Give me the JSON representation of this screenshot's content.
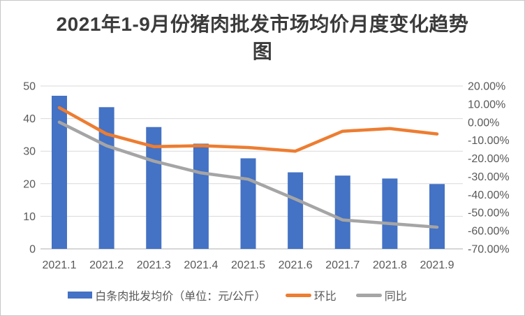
{
  "chart_data": {
    "type": "combo-bar-line",
    "title": "2021年1-9月份猪肉批发市场均价月度变化趋势图",
    "categories": [
      "2021.1",
      "2021.2",
      "2021.3",
      "2021.4",
      "2021.5",
      "2021.6",
      "2021.7",
      "2021.8",
      "2021.9"
    ],
    "series": [
      {
        "name": "白条肉批发均价（单位：元/公斤）",
        "type": "bar",
        "axis": "left",
        "color": "#4472C4",
        "values": [
          47.0,
          43.5,
          37.4,
          32.3,
          27.8,
          23.5,
          22.5,
          21.6,
          19.9
        ]
      },
      {
        "name": "环比",
        "type": "line",
        "axis": "right",
        "color": "#ED7D31",
        "values": [
          8.0,
          -6.5,
          -13.5,
          -13.0,
          -14.0,
          -16.0,
          -5.0,
          -3.5,
          -6.5
        ]
      },
      {
        "name": "同比",
        "type": "line",
        "axis": "right",
        "color": "#A5A5A5",
        "values": [
          0.0,
          -13.0,
          -21.5,
          -28.0,
          -31.5,
          -42.5,
          -54.0,
          -56.0,
          -58.0
        ]
      }
    ],
    "left_axis": {
      "min": 0,
      "max": 50,
      "step": 10,
      "ticks": [
        "0",
        "10",
        "20",
        "30",
        "40",
        "50"
      ]
    },
    "right_axis": {
      "min": -70,
      "max": 20,
      "step": 10,
      "ticks": [
        "20.00%",
        "10.00%",
        "0.00%",
        "-10.00%",
        "-20.00%",
        "-30.00%",
        "-40.00%",
        "-50.00%",
        "-60.00%",
        "-70.00%"
      ]
    },
    "grid": true,
    "legend_position": "bottom"
  }
}
